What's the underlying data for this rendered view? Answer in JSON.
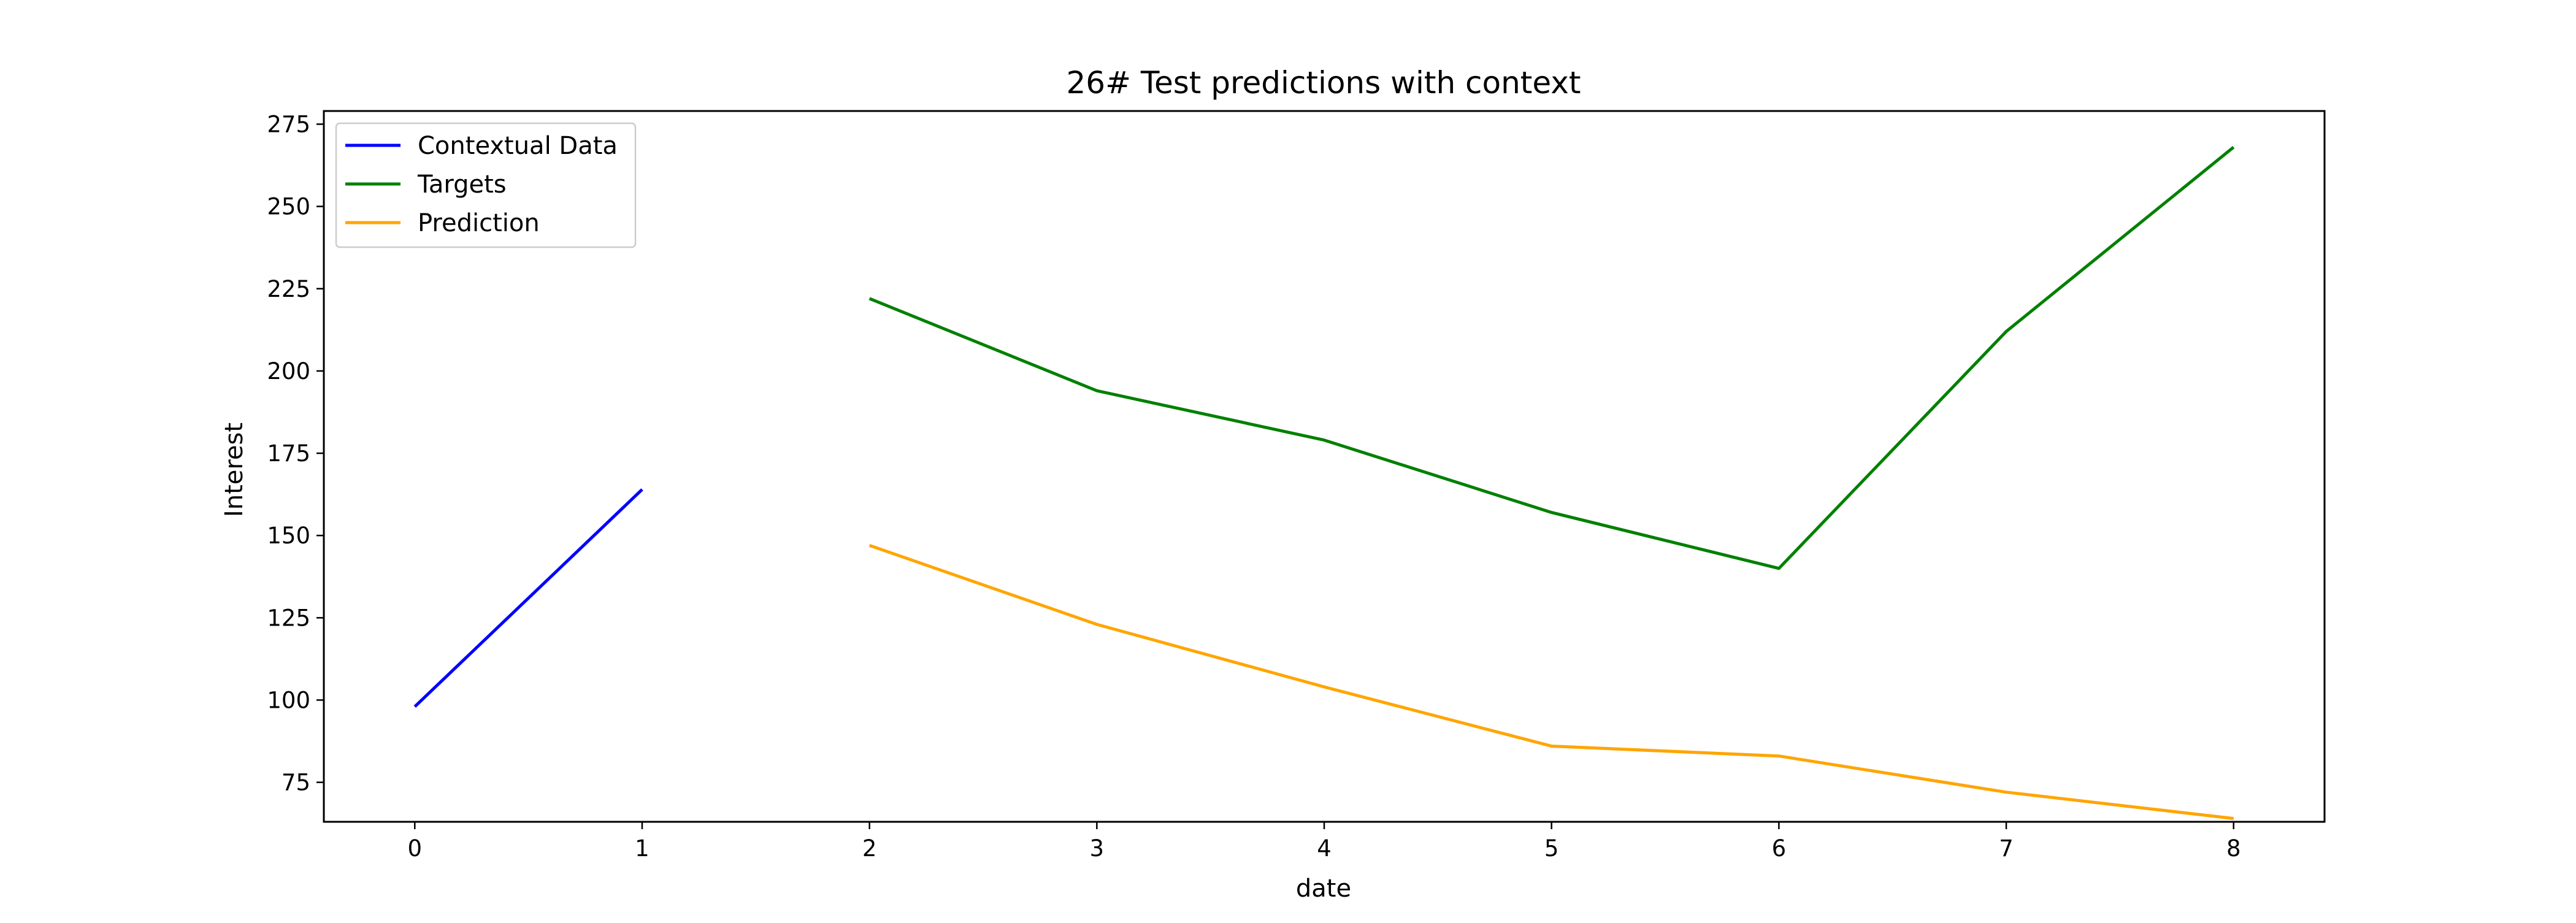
{
  "chart_data": {
    "type": "line",
    "title": "26# Test predictions with context",
    "xlabel": "date",
    "ylabel": "Interest",
    "xlim": [
      -0.4,
      8.4
    ],
    "ylim": [
      63,
      279
    ],
    "x_ticks": [
      0,
      1,
      2,
      3,
      4,
      5,
      6,
      7,
      8
    ],
    "y_ticks": [
      75,
      100,
      125,
      150,
      175,
      200,
      225,
      250,
      275
    ],
    "grid": false,
    "legend_position": "upper-left",
    "series": [
      {
        "name": "Contextual Data",
        "color": "#0000ff",
        "x": [
          0,
          1
        ],
        "y": [
          98,
          164
        ]
      },
      {
        "name": "Targets",
        "color": "#008000",
        "x": [
          2,
          3,
          4,
          5,
          6,
          7,
          8
        ],
        "y": [
          222,
          194,
          179,
          157,
          140,
          212,
          268
        ]
      },
      {
        "name": "Prediction",
        "color": "#ffa500",
        "x": [
          2,
          3,
          4,
          5,
          6,
          7,
          8
        ],
        "y": [
          147,
          123,
          104,
          86,
          83,
          72,
          64
        ]
      }
    ]
  }
}
